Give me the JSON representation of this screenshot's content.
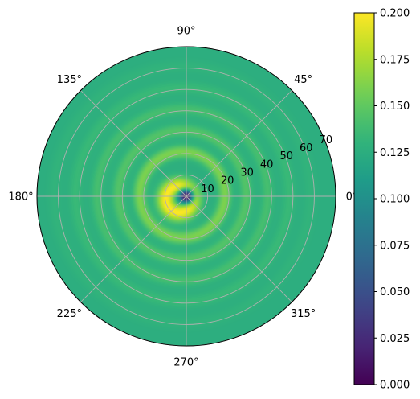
{
  "chart_data": {
    "type": "heatmap",
    "projection": "polar",
    "title": "",
    "theta_tick_labels": [
      "0°",
      "45°",
      "90°",
      "135°",
      "180°",
      "225°",
      "270°",
      "315°"
    ],
    "theta_ticks_deg": [
      0,
      45,
      90,
      135,
      180,
      225,
      270,
      315
    ],
    "r_tick_labels": [
      "10",
      "20",
      "30",
      "40",
      "50",
      "60",
      "70"
    ],
    "r_ticks": [
      10,
      20,
      30,
      40,
      50,
      60,
      70
    ],
    "rlim": [
      0,
      70
    ],
    "r_label_angle_deg": 22.5,
    "grid": true,
    "colormap": "viridis",
    "clim": [
      0,
      0.2
    ],
    "colorbar": {
      "position": "right",
      "tick_values": [
        0.0,
        0.025,
        0.05,
        0.075,
        0.1,
        0.125,
        0.15,
        0.175,
        0.2
      ],
      "tick_labels": [
        "0.000",
        "0.025",
        "0.050",
        "0.075",
        "0.100",
        "0.125",
        "0.150",
        "0.175",
        "0.200"
      ]
    },
    "field": {
      "description_of_values": "value at radius r and angle theta",
      "background_value": 0.125,
      "center_value": 0.0,
      "core_value": 0.2,
      "ring_radii": [
        20,
        30,
        40,
        50,
        60
      ],
      "ring_values": [
        0.16,
        0.145,
        0.14,
        0.135,
        0.13
      ]
    }
  },
  "colors": {
    "grid": "#b0b0b0",
    "spine": "#000000",
    "viridis": [
      "#440154",
      "#482878",
      "#3e4989",
      "#31688e",
      "#26828e",
      "#1f9e89",
      "#35b779",
      "#6ece58",
      "#b5de2b",
      "#fde725"
    ]
  }
}
